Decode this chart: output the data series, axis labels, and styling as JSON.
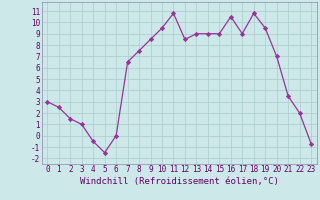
{
  "x": [
    0,
    1,
    2,
    3,
    4,
    5,
    6,
    7,
    8,
    9,
    10,
    11,
    12,
    13,
    14,
    15,
    16,
    17,
    18,
    19,
    20,
    21,
    22,
    23
  ],
  "y": [
    3,
    2.5,
    1.5,
    1,
    -0.5,
    -1.5,
    0,
    6.5,
    7.5,
    8.5,
    9.5,
    10.8,
    8.5,
    9,
    9,
    9,
    10.5,
    9,
    10.8,
    9.5,
    7,
    3.5,
    2,
    -0.7
  ],
  "line_color": "#993399",
  "marker": "D",
  "marker_size": 2.2,
  "bg_color": "#cce8e8",
  "grid_color": "#aacccc",
  "xlabel": "Windchill (Refroidissement éolien,°C)",
  "xlabel_fontsize": 6.5,
  "ylabel_ticks": [
    -2,
    -1,
    0,
    1,
    2,
    3,
    4,
    5,
    6,
    7,
    8,
    9,
    10,
    11
  ],
  "xlim": [
    -0.5,
    23.5
  ],
  "ylim": [
    -2.5,
    11.8
  ],
  "tick_color": "#660066",
  "tick_fontsize": 5.5
}
